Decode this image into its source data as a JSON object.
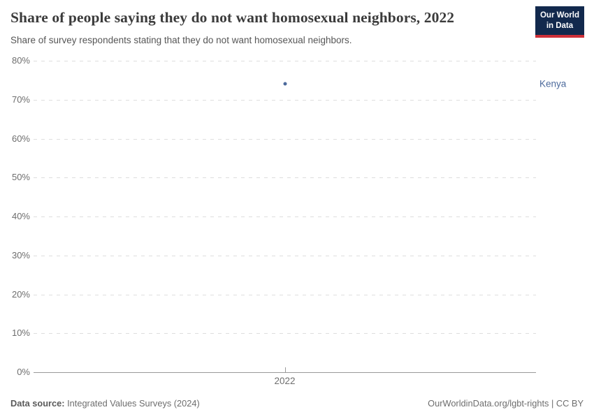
{
  "header": {
    "title": "Share of people saying they do not want homosexual neighbors, 2022",
    "subtitle": "Share of survey respondents stating that they do not want homosexual neighbors."
  },
  "logo": {
    "line1": "Our World",
    "line2": "in Data",
    "bg_color": "#12294d",
    "accent_color": "#cf3039"
  },
  "chart_data": {
    "type": "scatter",
    "title": "Share of people saying they do not want homosexual neighbors, 2022",
    "x": [
      2022
    ],
    "xticks": [
      "2022"
    ],
    "series": [
      {
        "name": "Kenya",
        "values": [
          74
        ],
        "color": "#4c6a9c"
      }
    ],
    "xlabel": "",
    "ylabel": "",
    "ylim": [
      0,
      80
    ],
    "ytick_step": 10,
    "ytick_suffix": "%",
    "grid": "horizontal-dashed",
    "legend_position": "right-entity-label"
  },
  "footer": {
    "source_label": "Data source:",
    "source_value": "Integrated Values Surveys (2024)",
    "rights": "OurWorldinData.org/lgbt-rights | CC BY"
  }
}
